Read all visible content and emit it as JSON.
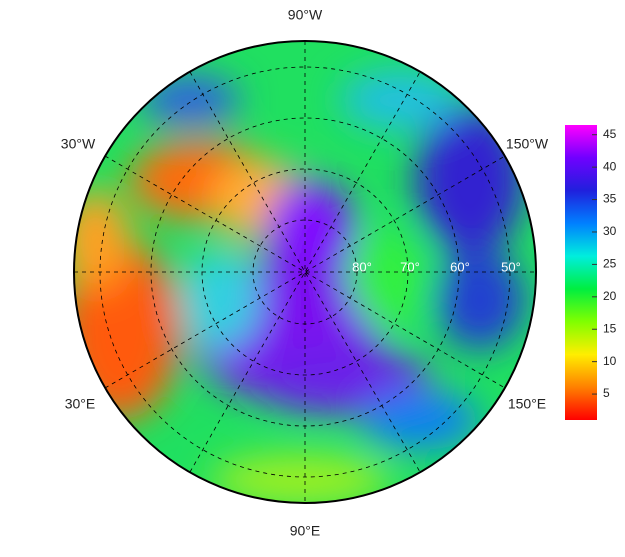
{
  "map": {
    "longitude_labels": [
      "90°W",
      "30°W",
      "150°W",
      "30°E",
      "150°E",
      "90°E"
    ],
    "latitude_labels": [
      "80°",
      "70°",
      "60°",
      "50°"
    ],
    "colorbar": {
      "lim": [
        1,
        46.5
      ],
      "ticks": [
        5,
        10,
        15,
        20,
        25,
        30,
        35,
        40,
        45
      ],
      "colors": [
        "#ff0000",
        "#ff8000",
        "#ffee00",
        "#80ff00",
        "#00ee40",
        "#00eedd",
        "#0080ff",
        "#2020dd",
        "#7000ff",
        "#ff00ff"
      ]
    }
  }
}
